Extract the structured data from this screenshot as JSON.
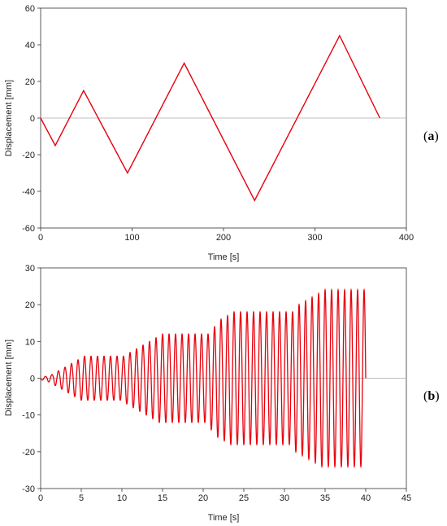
{
  "chart_data": [
    {
      "type": "line",
      "panel_label": "(a)",
      "panel_letter": "a",
      "xlabel": "Time [s]",
      "ylabel": "Displacement [mm]",
      "xlim": [
        0,
        400
      ],
      "ylim": [
        -60,
        60
      ],
      "xticks": [
        0,
        100,
        200,
        300,
        400
      ],
      "yticks": [
        -60,
        -40,
        -20,
        0,
        20,
        40,
        60
      ],
      "line_color": "#e8000b",
      "zero_line": true,
      "series": [
        {
          "x": [
            0,
            16,
            47,
            95,
            157,
            234,
            327,
            371
          ],
          "y": [
            0,
            -15,
            15,
            -30,
            30,
            -45,
            45,
            0
          ]
        }
      ]
    },
    {
      "type": "line",
      "panel_label": "(b)",
      "panel_letter": "b",
      "xlabel": "Time [s]",
      "ylabel": "Displacement [mm]",
      "xlim": [
        0,
        45
      ],
      "ylim": [
        -30,
        30
      ],
      "xticks": [
        0,
        5,
        10,
        15,
        20,
        25,
        30,
        35,
        40,
        45
      ],
      "yticks": [
        -30,
        -20,
        -10,
        0,
        10,
        20,
        30
      ],
      "line_color": "#e8000b",
      "zero_line": true,
      "waveform": "sinusoidal",
      "period_s": 0.8,
      "duration_s": 40,
      "amplitude_steps": [
        {
          "t_end": 0.8,
          "amplitude": 0.5
        },
        {
          "t_end": 1.6,
          "amplitude": 1
        },
        {
          "t_end": 2.4,
          "amplitude": 2
        },
        {
          "t_end": 3.2,
          "amplitude": 3
        },
        {
          "t_end": 4.0,
          "amplitude": 4
        },
        {
          "t_end": 4.8,
          "amplitude": 5
        },
        {
          "t_end": 10.4,
          "amplitude": 6
        },
        {
          "t_end": 11.2,
          "amplitude": 7
        },
        {
          "t_end": 12.0,
          "amplitude": 8
        },
        {
          "t_end": 12.8,
          "amplitude": 9
        },
        {
          "t_end": 13.6,
          "amplitude": 10
        },
        {
          "t_end": 14.4,
          "amplitude": 11
        },
        {
          "t_end": 20.8,
          "amplitude": 12
        },
        {
          "t_end": 21.6,
          "amplitude": 14
        },
        {
          "t_end": 22.4,
          "amplitude": 16
        },
        {
          "t_end": 23.2,
          "amplitude": 17
        },
        {
          "t_end": 31.2,
          "amplitude": 18
        },
        {
          "t_end": 32.0,
          "amplitude": 20
        },
        {
          "t_end": 32.8,
          "amplitude": 21
        },
        {
          "t_end": 33.6,
          "amplitude": 22
        },
        {
          "t_end": 34.4,
          "amplitude": 23
        },
        {
          "t_end": 40.0,
          "amplitude": 24
        }
      ]
    }
  ]
}
